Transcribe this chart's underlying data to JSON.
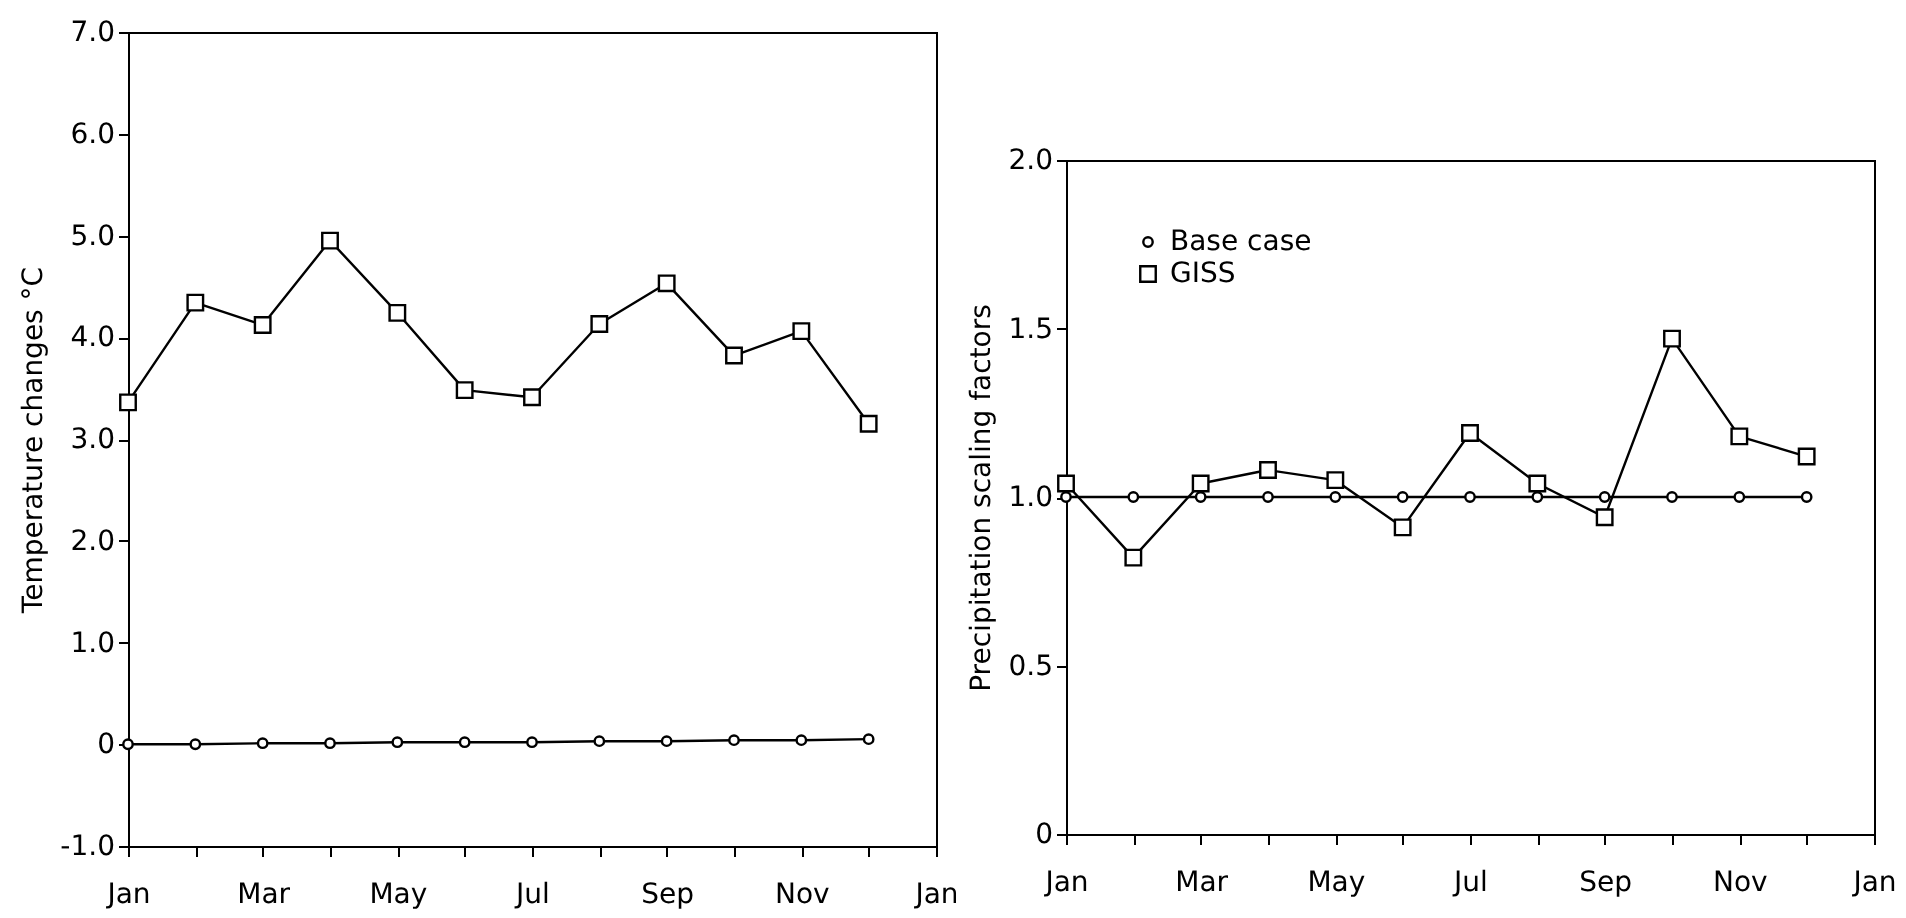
{
  "chart_data": [
    {
      "type": "line",
      "ylabel": "Temperature changes °C",
      "categories": [
        "Jan",
        null,
        "Mar",
        null,
        "May",
        null,
        "Jul",
        null,
        "Sep",
        null,
        "Nov",
        null,
        "Jan"
      ],
      "ylim": [
        -1,
        7
      ],
      "yticks": [
        {
          "value": -1,
          "label": "-1.0"
        },
        0,
        {
          "value": 1,
          "label": "1.0"
        },
        {
          "value": 2,
          "label": "2.0"
        },
        {
          "value": 3,
          "label": "3.0"
        },
        {
          "value": 4,
          "label": "4.0"
        },
        {
          "value": 5,
          "label": "5.0"
        },
        {
          "value": 6,
          "label": "6.0"
        },
        {
          "value": 7,
          "label": "7.0"
        }
      ],
      "grid": false,
      "series": [
        {
          "color": "#000000",
          "marker": "circle",
          "values": [
            0.0,
            0.0,
            0.01,
            0.01,
            0.02,
            0.02,
            0.02,
            0.03,
            0.03,
            0.04,
            0.04,
            0.05,
            null
          ]
        },
        {
          "color": "#000000",
          "marker": "square",
          "values": [
            3.36,
            4.34,
            4.12,
            4.95,
            4.24,
            3.48,
            3.41,
            4.13,
            4.53,
            3.82,
            4.06,
            3.15,
            null
          ]
        }
      ]
    },
    {
      "type": "line",
      "ylabel": "Precipitation scaling factors",
      "categories": [
        "Jan",
        null,
        "Mar",
        null,
        "May",
        null,
        "Jul",
        null,
        "Sep",
        null,
        "Nov",
        null,
        "Jan"
      ],
      "ylim": [
        0,
        2
      ],
      "yticks": [
        0,
        {
          "value": 0.5,
          "label": "0.5"
        },
        {
          "value": 1,
          "label": "1.0"
        },
        {
          "value": 1.5,
          "label": "1.5"
        },
        {
          "value": 2,
          "label": "2.0"
        }
      ],
      "grid": false,
      "legend": "top left",
      "series": [
        {
          "name": "Base case",
          "color": "#000000",
          "marker": "circle",
          "values": [
            1.0,
            1.0,
            1.0,
            1.0,
            1.0,
            1.0,
            1.0,
            1.0,
            1.0,
            1.0,
            1.0,
            1.0,
            null
          ]
        },
        {
          "name": "GISS",
          "color": "#000000",
          "marker": "square",
          "values": [
            1.04,
            0.82,
            1.04,
            1.08,
            1.05,
            0.91,
            1.19,
            1.04,
            0.94,
            1.47,
            1.18,
            1.12,
            null
          ]
        }
      ]
    }
  ]
}
